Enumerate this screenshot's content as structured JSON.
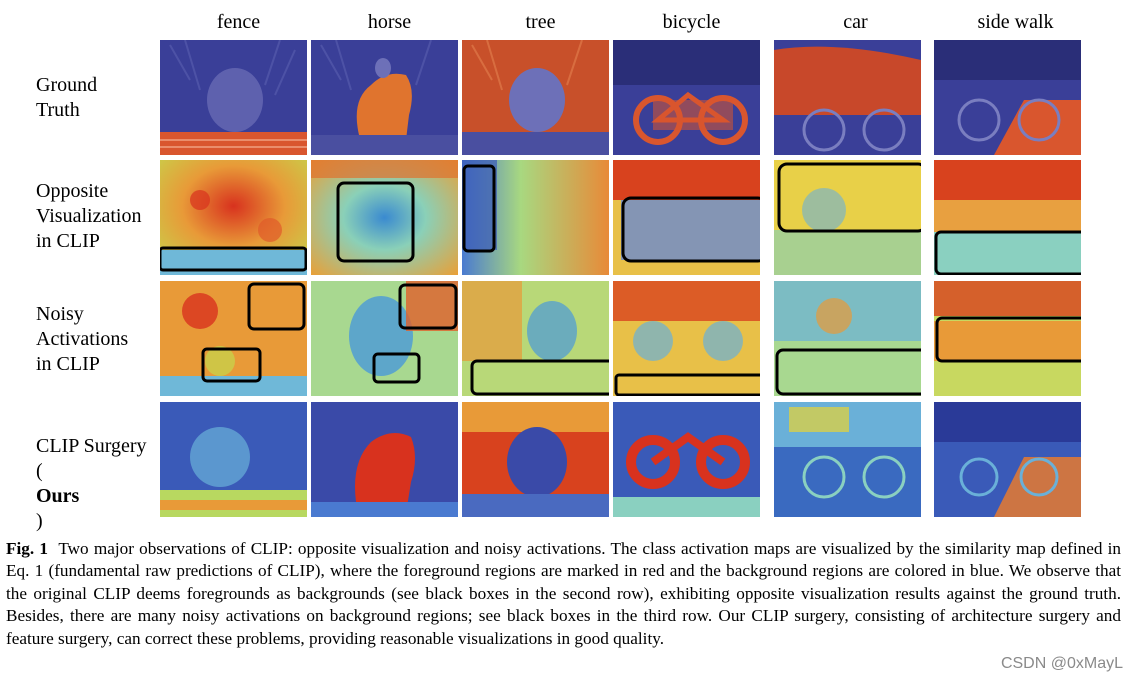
{
  "columns": [
    "fence",
    "horse",
    "tree",
    "bicycle",
    "car",
    "side walk"
  ],
  "rows": {
    "ground_truth": {
      "line1": "Ground",
      "line2": "Truth"
    },
    "opposite": {
      "line1": "Opposite",
      "line2": "Visualization",
      "line3": "in CLIP"
    },
    "noisy": {
      "line1": "Noisy",
      "line2": "Activations",
      "line3": "in CLIP"
    },
    "surgery": {
      "line1": "CLIP Surgery",
      "line2_open": "(",
      "line2_bold": "Ours",
      "line2_close": ")"
    }
  },
  "caption": {
    "label": "Fig. 1",
    "text": "Two major observations of CLIP: opposite visualization and noisy activations. The class activation maps are visualized by the similarity map defined in Eq. 1 (fundamental raw predictions of CLIP), where the foreground regions are marked in red and the background regions are colored in blue. We observe that the original CLIP deems foregrounds as backgrounds (see black boxes in the second row), exhibiting opposite visualization results against the ground truth. Besides, there are many noisy activations on background regions; see black boxes in the third row. Our CLIP surgery, consisting of architecture surgery and feature surgery, can correct these problems, providing reasonable visualizations in good quality."
  },
  "watermark": "CSDN @0xMayL",
  "colors": {
    "gt_background": "#3a3f98",
    "gt_foreground": "#d9562e",
    "heat_low": "#2b3ea8",
    "heat_mid": "#e3e04a",
    "heat_high": "#d8321e",
    "box_outline": "#000000"
  }
}
